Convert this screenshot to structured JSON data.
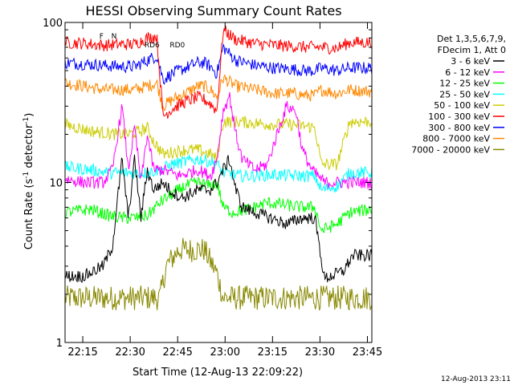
{
  "chart_data": {
    "type": "line",
    "title": "HESSI Observing Summary Count Rates",
    "xlabel": "Start Time (12-Aug-13 22:09:22)",
    "ylabel_main": "Count Rate (s",
    "ylabel_sup1": "-1",
    "ylabel_mid": " detector",
    "ylabel_sup2": "-1",
    "ylabel_end": ")",
    "yscale": "log",
    "ylim": [
      1,
      100
    ],
    "xlim_minutes": [
      0,
      97
    ],
    "x_ticks": [
      {
        "minute": 5.6,
        "label": "22:15"
      },
      {
        "minute": 20.6,
        "label": "22:30"
      },
      {
        "minute": 35.6,
        "label": "22:45"
      },
      {
        "minute": 50.6,
        "label": "23:00"
      },
      {
        "minute": 65.6,
        "label": "23:15"
      },
      {
        "minute": 80.6,
        "label": "23:30"
      },
      {
        "minute": 95.6,
        "label": "23:45"
      }
    ],
    "y_ticks": [
      {
        "value": 1,
        "label": "1"
      },
      {
        "value": 10,
        "label": "10"
      },
      {
        "value": 100,
        "label": "100"
      }
    ],
    "legend_header": [
      "Det 1,3,5,6,7,9,",
      "FDecim 1, Att 0"
    ],
    "series": [
      {
        "name": "3 - 6 keV",
        "color": "#000000",
        "knots": [
          [
            0,
            2.6
          ],
          [
            6,
            2.6
          ],
          [
            12,
            3.0
          ],
          [
            15,
            4.0
          ],
          [
            18,
            14
          ],
          [
            20,
            6
          ],
          [
            22,
            14
          ],
          [
            24,
            6
          ],
          [
            26,
            12
          ],
          [
            28,
            9
          ],
          [
            31,
            10
          ],
          [
            33,
            9
          ],
          [
            37,
            8
          ],
          [
            42,
            9
          ],
          [
            46,
            9
          ],
          [
            48,
            10
          ],
          [
            50,
            12
          ],
          [
            52,
            14
          ],
          [
            54,
            9
          ],
          [
            56,
            7
          ],
          [
            60,
            6.5
          ],
          [
            65,
            6
          ],
          [
            70,
            5.5
          ],
          [
            75,
            6
          ],
          [
            79,
            6
          ],
          [
            82,
            2.5
          ],
          [
            88,
            2.8
          ],
          [
            91,
            3.5
          ],
          [
            97,
            3.5
          ]
        ]
      },
      {
        "name": "6 - 12 keV",
        "color": "#ff00ff",
        "knots": [
          [
            0,
            10.5
          ],
          [
            6,
            10
          ],
          [
            12,
            10
          ],
          [
            15,
            12
          ],
          [
            18,
            30
          ],
          [
            20,
            12
          ],
          [
            22,
            22
          ],
          [
            24,
            10
          ],
          [
            26,
            20
          ],
          [
            28,
            12
          ],
          [
            31,
            12
          ],
          [
            36,
            11
          ],
          [
            42,
            12
          ],
          [
            46,
            11
          ],
          [
            48,
            14
          ],
          [
            50,
            28
          ],
          [
            52,
            35
          ],
          [
            54,
            20
          ],
          [
            56,
            14
          ],
          [
            60,
            12
          ],
          [
            64,
            13
          ],
          [
            67,
            20
          ],
          [
            70,
            30
          ],
          [
            73,
            28
          ],
          [
            75,
            16
          ],
          [
            78,
            12
          ],
          [
            82,
            10
          ],
          [
            87,
            10
          ],
          [
            91,
            10
          ],
          [
            97,
            10
          ]
        ]
      },
      {
        "name": "12 - 25 keV",
        "color": "#00ff00",
        "knots": [
          [
            0,
            6.5
          ],
          [
            8,
            6.8
          ],
          [
            14,
            6.2
          ],
          [
            18,
            6.0
          ],
          [
            22,
            6.0
          ],
          [
            26,
            6.2
          ],
          [
            30,
            7.5
          ],
          [
            34,
            8.5
          ],
          [
            38,
            9.5
          ],
          [
            42,
            10
          ],
          [
            46,
            9.5
          ],
          [
            48,
            10
          ],
          [
            50,
            7
          ],
          [
            53,
            6.5
          ],
          [
            58,
            6.8
          ],
          [
            64,
            7.5
          ],
          [
            70,
            7.2
          ],
          [
            75,
            7.0
          ],
          [
            79,
            7.0
          ],
          [
            81,
            5
          ],
          [
            86,
            5.5
          ],
          [
            90,
            6.5
          ],
          [
            97,
            6.8
          ]
        ]
      },
      {
        "name": "25 - 50 keV",
        "color": "#00ffff",
        "knots": [
          [
            0,
            12.5
          ],
          [
            8,
            12
          ],
          [
            14,
            11.5
          ],
          [
            20,
            11.5
          ],
          [
            26,
            11.5
          ],
          [
            30,
            12
          ],
          [
            34,
            13
          ],
          [
            38,
            13.5
          ],
          [
            42,
            14
          ],
          [
            46,
            13.5
          ],
          [
            48,
            13
          ],
          [
            50,
            11.5
          ],
          [
            55,
            11
          ],
          [
            60,
            11
          ],
          [
            66,
            11.2
          ],
          [
            72,
            11
          ],
          [
            76,
            11
          ],
          [
            79,
            11
          ],
          [
            81,
            9
          ],
          [
            86,
            9.5
          ],
          [
            90,
            11.5
          ],
          [
            97,
            11.5
          ]
        ]
      },
      {
        "name": "50 - 100 keV",
        "color": "#cccc00",
        "knots": [
          [
            0,
            23
          ],
          [
            4,
            22
          ],
          [
            8,
            21
          ],
          [
            12,
            20.5
          ],
          [
            16,
            20
          ],
          [
            20,
            20
          ],
          [
            24,
            21
          ],
          [
            26,
            22
          ],
          [
            28,
            18
          ],
          [
            31,
            15
          ],
          [
            34,
            15.5
          ],
          [
            38,
            16
          ],
          [
            42,
            16
          ],
          [
            46,
            15
          ],
          [
            48,
            14
          ],
          [
            50,
            24
          ],
          [
            55,
            24
          ],
          [
            60,
            23.5
          ],
          [
            66,
            23
          ],
          [
            72,
            23
          ],
          [
            76,
            22.5
          ],
          [
            79,
            22
          ],
          [
            81,
            13
          ],
          [
            86,
            13
          ],
          [
            90,
            24
          ],
          [
            97,
            24
          ]
        ]
      },
      {
        "name": "100 - 300 keV",
        "color": "#ff0000",
        "knots": [
          [
            0,
            75
          ],
          [
            6,
            74
          ],
          [
            12,
            72
          ],
          [
            18,
            73
          ],
          [
            22,
            73
          ],
          [
            26,
            80
          ],
          [
            29,
            82
          ],
          [
            31,
            26
          ],
          [
            34,
            29
          ],
          [
            38,
            32
          ],
          [
            42,
            34
          ],
          [
            44,
            33
          ],
          [
            46,
            31
          ],
          [
            48,
            28
          ],
          [
            50,
            90
          ],
          [
            54,
            78
          ],
          [
            60,
            74
          ],
          [
            66,
            72
          ],
          [
            72,
            71
          ],
          [
            76,
            70
          ],
          [
            79,
            70
          ],
          [
            81,
            70
          ],
          [
            86,
            69
          ],
          [
            90,
            75
          ],
          [
            97,
            75
          ]
        ]
      },
      {
        "name": "300 - 800 keV",
        "color": "#0000ff",
        "knots": [
          [
            0,
            56
          ],
          [
            6,
            55
          ],
          [
            12,
            54
          ],
          [
            18,
            53
          ],
          [
            22,
            53
          ],
          [
            26,
            58
          ],
          [
            29,
            62
          ],
          [
            31,
            44
          ],
          [
            34,
            48
          ],
          [
            38,
            52
          ],
          [
            42,
            56
          ],
          [
            44,
            56
          ],
          [
            46,
            53
          ],
          [
            48,
            48
          ],
          [
            50,
            70
          ],
          [
            54,
            58
          ],
          [
            60,
            54
          ],
          [
            66,
            52
          ],
          [
            72,
            51
          ],
          [
            76,
            50
          ],
          [
            79,
            50
          ],
          [
            81,
            52
          ],
          [
            86,
            50
          ],
          [
            90,
            52
          ],
          [
            97,
            52
          ]
        ]
      },
      {
        "name": "800 - 7000 keV",
        "color": "#ff8800",
        "knots": [
          [
            0,
            42
          ],
          [
            6,
            40
          ],
          [
            12,
            38
          ],
          [
            18,
            38
          ],
          [
            22,
            38
          ],
          [
            26,
            40
          ],
          [
            29,
            42
          ],
          [
            31,
            30
          ],
          [
            34,
            33
          ],
          [
            38,
            36
          ],
          [
            42,
            40
          ],
          [
            44,
            40
          ],
          [
            46,
            38
          ],
          [
            48,
            34
          ],
          [
            50,
            45
          ],
          [
            54,
            40
          ],
          [
            60,
            38
          ],
          [
            66,
            36
          ],
          [
            72,
            36
          ],
          [
            76,
            35
          ],
          [
            79,
            35
          ],
          [
            81,
            38
          ],
          [
            86,
            36
          ],
          [
            90,
            38
          ],
          [
            97,
            37
          ]
        ]
      },
      {
        "name": "7000 - 20000 keV",
        "color": "#888800",
        "knots": [
          [
            0,
            1.9
          ],
          [
            30,
            1.9
          ],
          [
            32,
            3.0
          ],
          [
            36,
            3.8
          ],
          [
            40,
            3.8
          ],
          [
            44,
            3.8
          ],
          [
            46,
            3.2
          ],
          [
            48,
            2.7
          ],
          [
            50,
            1.9
          ],
          [
            97,
            1.9
          ]
        ]
      }
    ],
    "attenuator_states": [
      {
        "label": "F",
        "minute": 11.5
      },
      {
        "label": "N",
        "minute": 15.5
      }
    ],
    "rd_annotations": [
      {
        "label": "RD6",
        "minute": 27.5
      },
      {
        "label": "RD0",
        "minute": 35.5
      }
    ],
    "timestamp": "12-Aug-2013 23:11"
  }
}
